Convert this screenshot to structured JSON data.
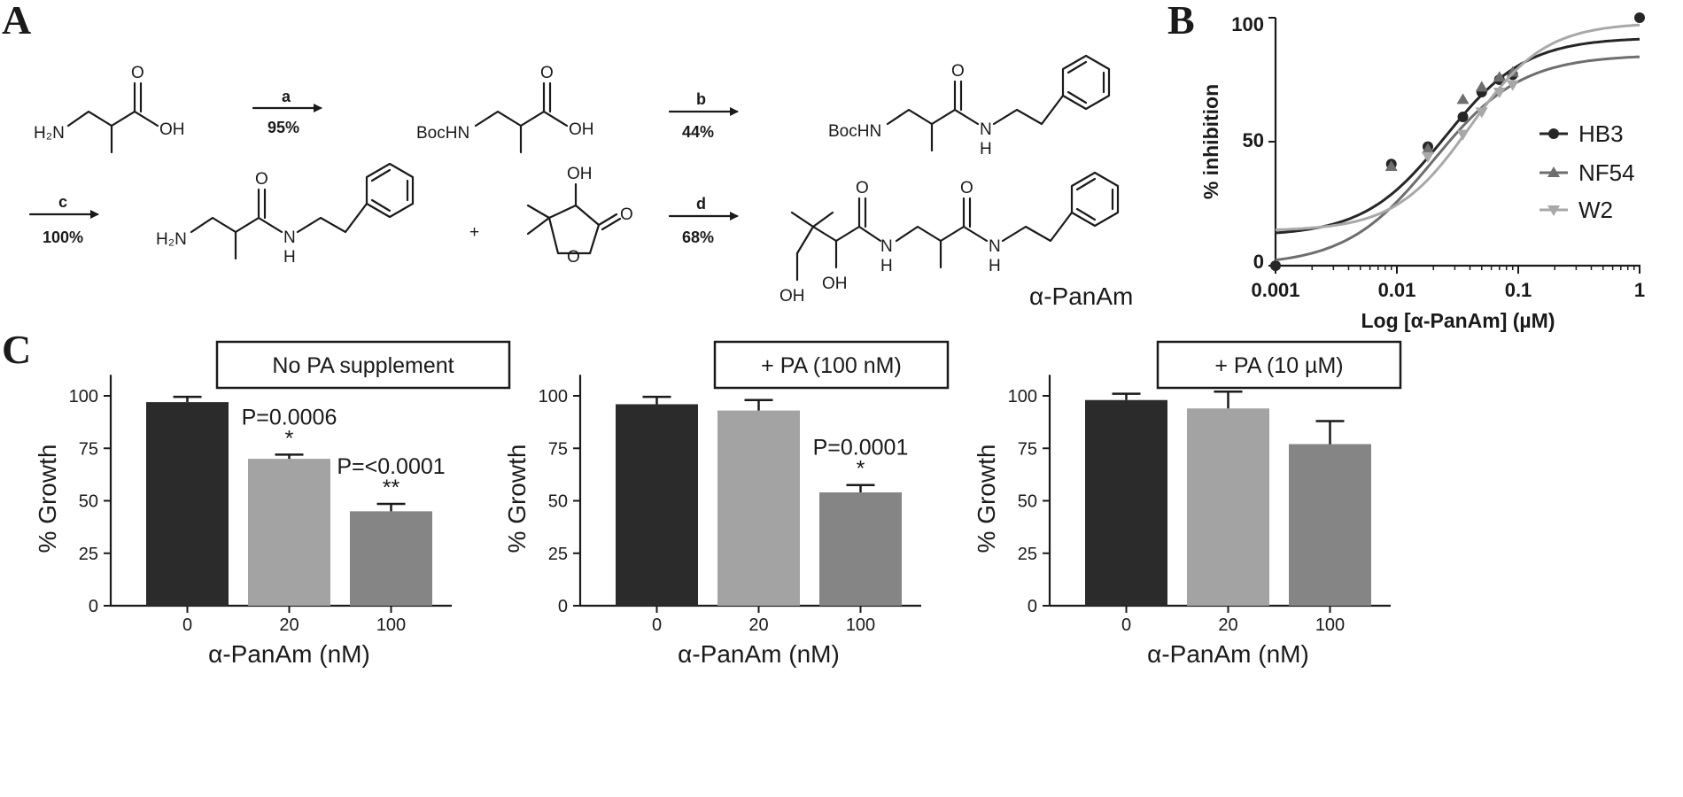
{
  "panel_labels": {
    "a": "A",
    "b": "B",
    "c": "C"
  },
  "scheme": {
    "labels": {
      "h2n": "H₂N",
      "oh": "OH",
      "bochn": "BocHN",
      "o": "O",
      "n": "N",
      "h": "H",
      "oh_hydroxy": "OH",
      "product_name": "α-PanAm",
      "plus": "+"
    },
    "steps": [
      {
        "letter": "a",
        "yield": "95%"
      },
      {
        "letter": "b",
        "yield": "44%"
      },
      {
        "letter": "c",
        "yield": "100%"
      },
      {
        "letter": "d",
        "yield": "68%"
      }
    ]
  },
  "colors": {
    "hb3": "#262626",
    "nf54": "#6e6e6e",
    "w2": "#a8a8a8",
    "bar0": "#2b2b2b",
    "bar20": "#a3a3a3",
    "bar100": "#858585"
  },
  "chart_data": [
    {
      "type": "scatter",
      "ylabel": "% inhibition",
      "xlabel": "Log [α-PanAm] (µM)",
      "x_scale": "log",
      "xlim": [
        0.001,
        1
      ],
      "ylim": [
        0,
        100
      ],
      "xticks": [
        "0.001",
        "0.01",
        "0.1",
        "1"
      ],
      "yticks": [
        "0",
        "50",
        "100"
      ],
      "legend_position": "right",
      "series": [
        {
          "name": "HB3",
          "marker": "circle",
          "x": [
            0.001,
            0.009,
            0.018,
            0.035,
            0.05,
            0.07,
            0.09,
            1.0
          ],
          "y": [
            0,
            41,
            48,
            60,
            70,
            75,
            77,
            100
          ],
          "fit": {
            "bottom": 12,
            "top": 92,
            "ec50": 0.025,
            "hill": 1.3
          }
        },
        {
          "name": "NF54",
          "marker": "triangle-up",
          "x": [
            0.009,
            0.018,
            0.035,
            0.05,
            0.07,
            0.09
          ],
          "y": [
            40,
            47,
            67,
            72,
            76,
            78
          ],
          "fit": {
            "bottom": 0,
            "top": 85,
            "ec50": 0.02,
            "hill": 1.2
          }
        },
        {
          "name": "W2",
          "marker": "triangle-down",
          "x": [
            0.018,
            0.035,
            0.05,
            0.07,
            0.09
          ],
          "y": [
            44,
            53,
            62,
            70,
            73
          ],
          "fit": {
            "bottom": 14,
            "top": 98,
            "ec50": 0.04,
            "hill": 1.4
          }
        }
      ]
    },
    {
      "type": "bar",
      "title": "No PA supplement",
      "xlabel": "α-PanAm (nM)",
      "ylabel": "% Growth",
      "ylim": [
        0,
        110
      ],
      "yticks": [
        "0",
        "25",
        "50",
        "75",
        "100"
      ],
      "categories": [
        "0",
        "20",
        "100"
      ],
      "values": [
        97,
        70,
        45
      ],
      "errors": [
        2.5,
        2,
        3.5
      ],
      "annotations": [
        {
          "category": "20",
          "pvalue": "P=0.0006",
          "stars": "*"
        },
        {
          "category": "100",
          "pvalue": "P=<0.0001",
          "stars": "**"
        }
      ]
    },
    {
      "type": "bar",
      "title": "+ PA (100 nM)",
      "xlabel": "α-PanAm (nM)",
      "ylabel": "% Growth",
      "ylim": [
        0,
        110
      ],
      "yticks": [
        "0",
        "25",
        "50",
        "75",
        "100"
      ],
      "categories": [
        "0",
        "20",
        "100"
      ],
      "values": [
        96,
        93,
        54
      ],
      "errors": [
        3.5,
        5,
        3.5
      ],
      "annotations": [
        {
          "category": "100",
          "pvalue": "P=0.0001",
          "stars": "*"
        }
      ]
    },
    {
      "type": "bar",
      "title": "+ PA (10 µM)",
      "xlabel": "α-PanAm (nM)",
      "ylabel": "% Growth",
      "ylim": [
        0,
        110
      ],
      "yticks": [
        "0",
        "25",
        "50",
        "75",
        "100"
      ],
      "categories": [
        "0",
        "20",
        "100"
      ],
      "values": [
        98,
        94,
        77
      ],
      "errors": [
        3,
        8,
        11
      ],
      "annotations": []
    }
  ]
}
